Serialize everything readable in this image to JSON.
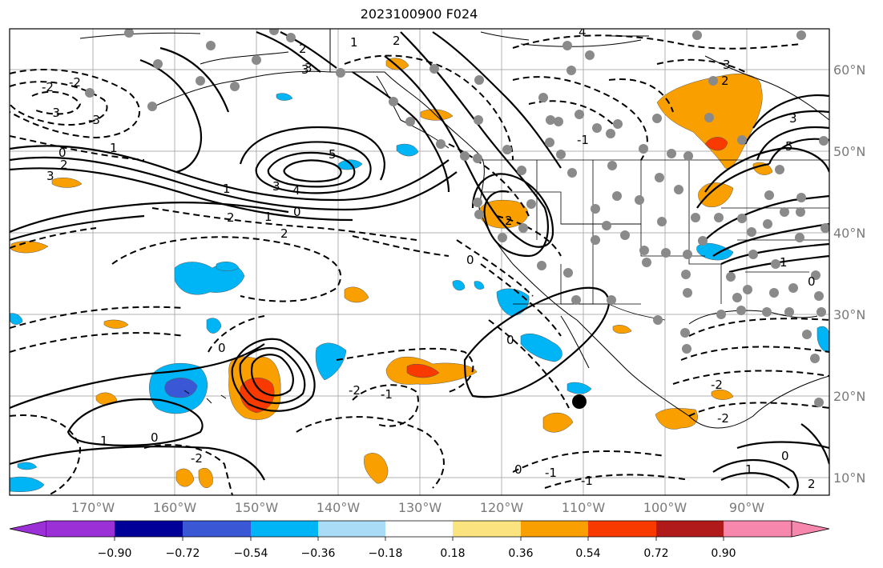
{
  "title": "2023100900 F024",
  "longitude_labels": [
    "170°W",
    "160°W",
    "150°W",
    "140°W",
    "130°W",
    "120°W",
    "110°W",
    "100°W",
    "90°W"
  ],
  "latitude_labels": [
    "60°N",
    "50°N",
    "40°N",
    "30°N",
    "20°N",
    "10°N"
  ],
  "contour_labels": [
    "-2",
    "-3",
    "-2",
    "-3",
    "0",
    "1",
    "2",
    "3",
    "5",
    "3",
    "4",
    "1",
    "2",
    "0",
    "1",
    "2",
    "3",
    "2",
    "1",
    "2",
    "3",
    "4",
    "0",
    "-1",
    "2",
    "5",
    "3",
    "0",
    "1",
    "2",
    "3",
    "-2",
    "-1",
    "0",
    "1",
    "0",
    "-2",
    "-1",
    "0",
    "-1",
    "-2",
    "-2",
    "0",
    "1",
    "2",
    "0"
  ],
  "colorbar": {
    "ticks": [
      "−0.90",
      "−0.72",
      "−0.54",
      "−0.36",
      "−0.18",
      "0.18",
      "0.36",
      "0.54",
      "0.72",
      "0.90"
    ],
    "colors": [
      "#9b30d6",
      "#000099",
      "#3a57d6",
      "#00b5f5",
      "#a9ddf7",
      "#ffffff",
      "#fbe380",
      "#f9a000",
      "#f83a00",
      "#b11a1a",
      "#f787ad"
    ]
  },
  "marker": {
    "type": "storm-center",
    "color": "#000000"
  }
}
